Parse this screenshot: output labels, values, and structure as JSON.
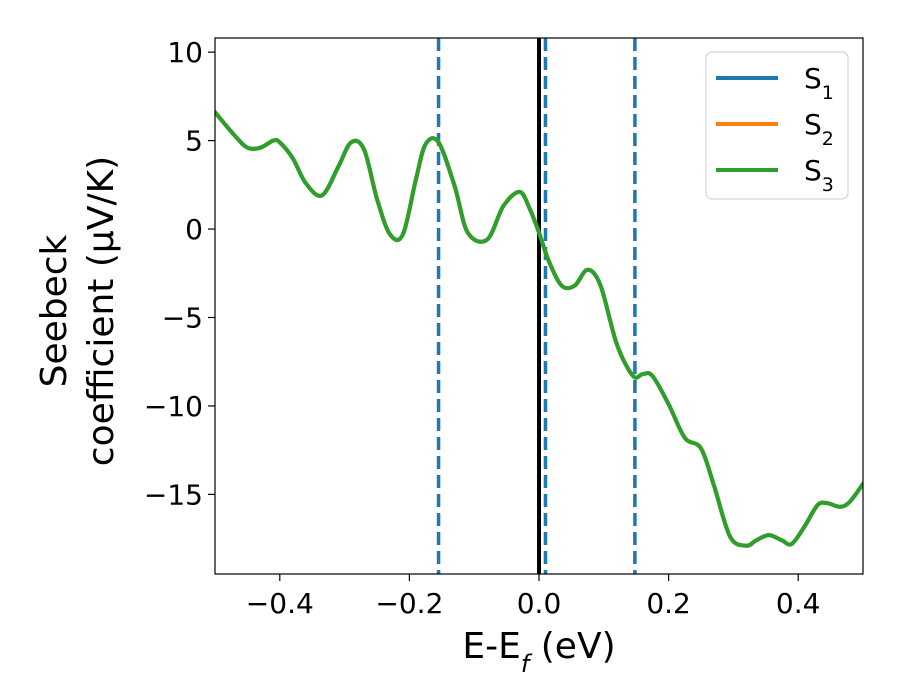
{
  "chart_data": {
    "type": "line",
    "title": "",
    "xlabel": {
      "main": "E-E",
      "sub": "f",
      "suffix": " (eV)"
    },
    "ylabel": {
      "line1": "Seebeck",
      "line2": "coefficient  (μV/K)"
    },
    "xlim": [
      -0.5,
      0.5
    ],
    "ylim": [
      -19.5,
      10.8
    ],
    "xticks": [
      -0.4,
      -0.2,
      0.0,
      0.2,
      0.4
    ],
    "xtick_labels": [
      "−0.4",
      "−0.2",
      "0.0",
      "0.2",
      "0.4"
    ],
    "yticks": [
      10,
      5,
      0,
      -5,
      -10,
      -15
    ],
    "ytick_labels": [
      "10",
      "5",
      "0",
      "−5",
      "−10",
      "−15"
    ],
    "grid": false,
    "legend_position": "top-right",
    "series": [
      {
        "name": "S",
        "sub": "1",
        "color": "#1f77b4"
      },
      {
        "name": "S",
        "sub": "2",
        "color": "#ff7f0e"
      },
      {
        "name": "S",
        "sub": "3",
        "color": "#2ca02c"
      }
    ],
    "x": [
      -0.5,
      -0.47,
      -0.45,
      -0.43,
      -0.41,
      -0.4,
      -0.38,
      -0.36,
      -0.335,
      -0.31,
      -0.29,
      -0.27,
      -0.25,
      -0.23,
      -0.21,
      -0.19,
      -0.175,
      -0.155,
      -0.13,
      -0.11,
      -0.08,
      -0.055,
      -0.03,
      -0.015,
      0.0,
      0.015,
      0.035,
      0.055,
      0.075,
      0.095,
      0.12,
      0.145,
      0.16,
      0.175,
      0.2,
      0.225,
      0.25,
      0.27,
      0.295,
      0.32,
      0.335,
      0.355,
      0.375,
      0.39,
      0.41,
      0.43,
      0.445,
      0.465,
      0.48,
      0.5
    ],
    "y_common": [
      6.6,
      5.3,
      4.6,
      4.6,
      5.0,
      4.9,
      4.0,
      2.6,
      1.9,
      3.5,
      4.9,
      4.5,
      1.7,
      -0.3,
      -0.3,
      2.8,
      4.8,
      4.9,
      2.4,
      -0.2,
      -0.6,
      1.3,
      2.1,
      1.2,
      -0.2,
      -1.8,
      -3.2,
      -3.2,
      -2.3,
      -3.2,
      -6.5,
      -8.3,
      -8.2,
      -8.3,
      -9.9,
      -11.8,
      -12.4,
      -14.5,
      -17.4,
      -17.9,
      -17.6,
      -17.3,
      -17.6,
      -17.8,
      -16.8,
      -15.6,
      -15.5,
      -15.7,
      -15.4,
      -14.4
    ],
    "vlines_dashed": [
      -0.155,
      0.01,
      0.148
    ],
    "vline_dashed_color": "#1f77b4",
    "vline_solid": 0.0,
    "vline_solid_color": "#000000"
  }
}
